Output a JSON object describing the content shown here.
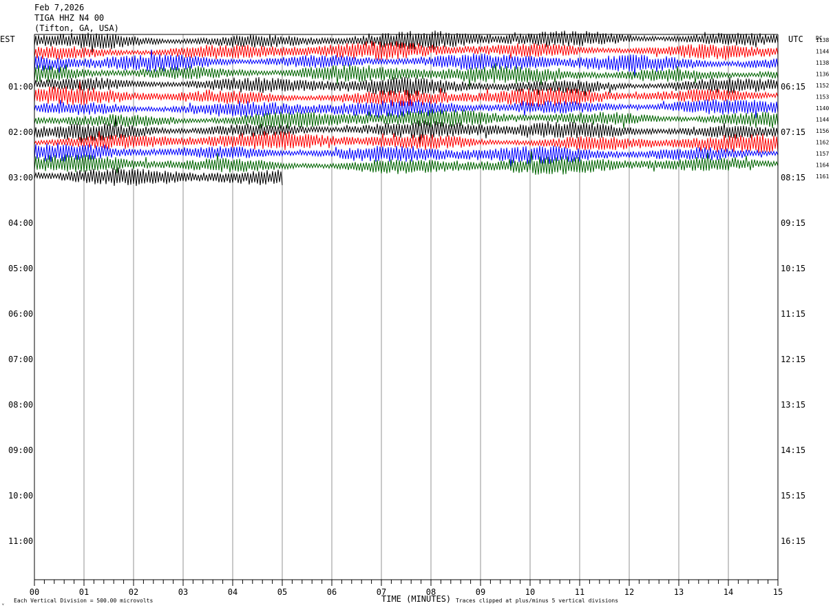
{
  "header": {
    "date": "Feb 7,2026",
    "station": "TIGA HHZ N4 00",
    "location": "(Tifton, GA, USA)"
  },
  "chart_data": {
    "type": "line",
    "left_axis_label": "EST",
    "right_axis_label": "UTC",
    "dc_label": "DC",
    "xlabel": "TIME (MINUTES)",
    "x_ticks": [
      "00",
      "01",
      "02",
      "03",
      "04",
      "05",
      "06",
      "07",
      "08",
      "09",
      "10",
      "11",
      "12",
      "13",
      "14",
      "15"
    ],
    "xlim": [
      0,
      15
    ],
    "hour_labels_est": [
      "01:00",
      "02:00",
      "03:00",
      "04:00",
      "05:00",
      "06:00",
      "07:00",
      "08:00",
      "09:00",
      "10:00",
      "11:00"
    ],
    "hour_labels_utc": [
      "06:15",
      "07:15",
      "08:15",
      "09:15",
      "10:15",
      "11:15",
      "12:15",
      "13:15",
      "14:15",
      "15:15",
      "16:15"
    ],
    "trace_colors": [
      "#000000",
      "#ff0000",
      "#0000ff",
      "#006400"
    ],
    "dc_offsets": [
      "1138",
      "1144",
      "1138",
      "1136",
      "1152",
      "1153",
      "1140",
      "1144",
      "1156",
      "1162",
      "1157",
      "1164",
      "1161"
    ],
    "traces_recorded": 13,
    "last_trace_end_minute": 5,
    "footer_left": "Each Vertical Division =  500.00 microvolts",
    "footer_right": "Traces clipped at plus/minus 5 vertical divisions",
    "corner_mark": "ᵥ"
  }
}
